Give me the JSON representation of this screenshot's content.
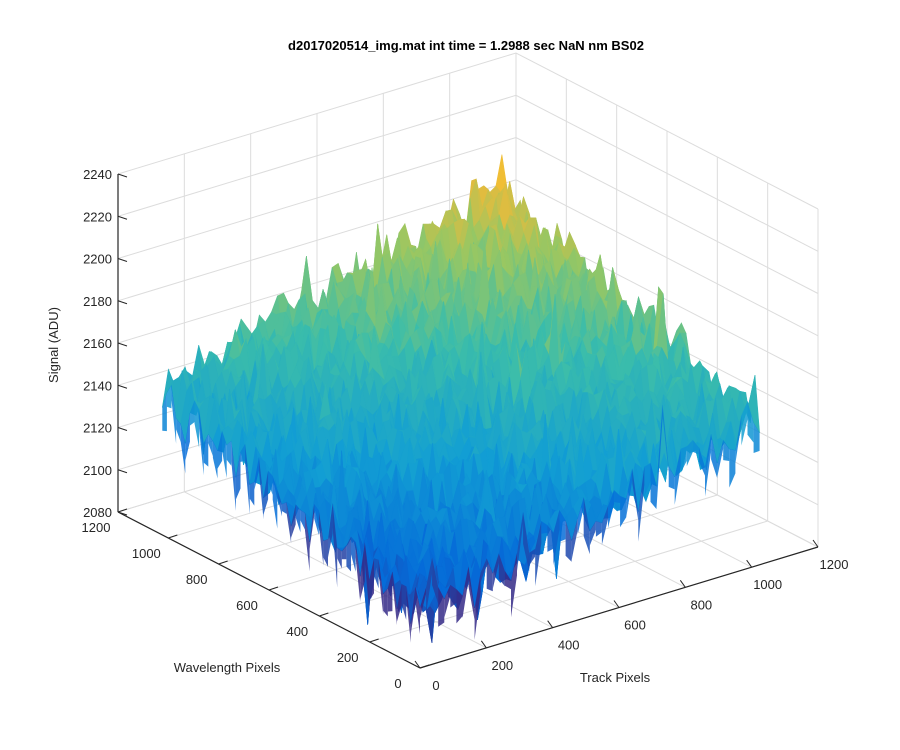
{
  "chart_data": {
    "type": "surface",
    "title": "d2017020514_img.mat int time = 1.2988 sec  NaN nm BS02",
    "xlabel": "Track Pixels",
    "ylabel": "Wavelength Pixels",
    "zlabel": "Signal (ADU)",
    "xlim": [
      0,
      1200
    ],
    "ylim": [
      0,
      1200
    ],
    "zlim": [
      2080,
      2240
    ],
    "xticks": [
      "0",
      "200",
      "400",
      "600",
      "800",
      "1000",
      "1200"
    ],
    "yticks": [
      "0",
      "200",
      "400",
      "600",
      "800",
      "1000",
      "1200"
    ],
    "zticks": [
      "2080",
      "2100",
      "2120",
      "2140",
      "2160",
      "2180",
      "2200",
      "2220",
      "2240"
    ],
    "grid": true,
    "colormap": "parula",
    "surface_extent": {
      "x": [
        0,
        1024
      ],
      "y": [
        0,
        1024
      ]
    },
    "surface_summary": {
      "corner_x0_y0": 2105,
      "corner_x1024_y0": 2150,
      "corner_x0_y1024": 2150,
      "corner_x1024_y1024": 2195,
      "noise_amplitude": 12
    },
    "colors": {
      "low": "#0072bd",
      "mid": "#4dbeb8",
      "high": "#f4c430"
    }
  }
}
